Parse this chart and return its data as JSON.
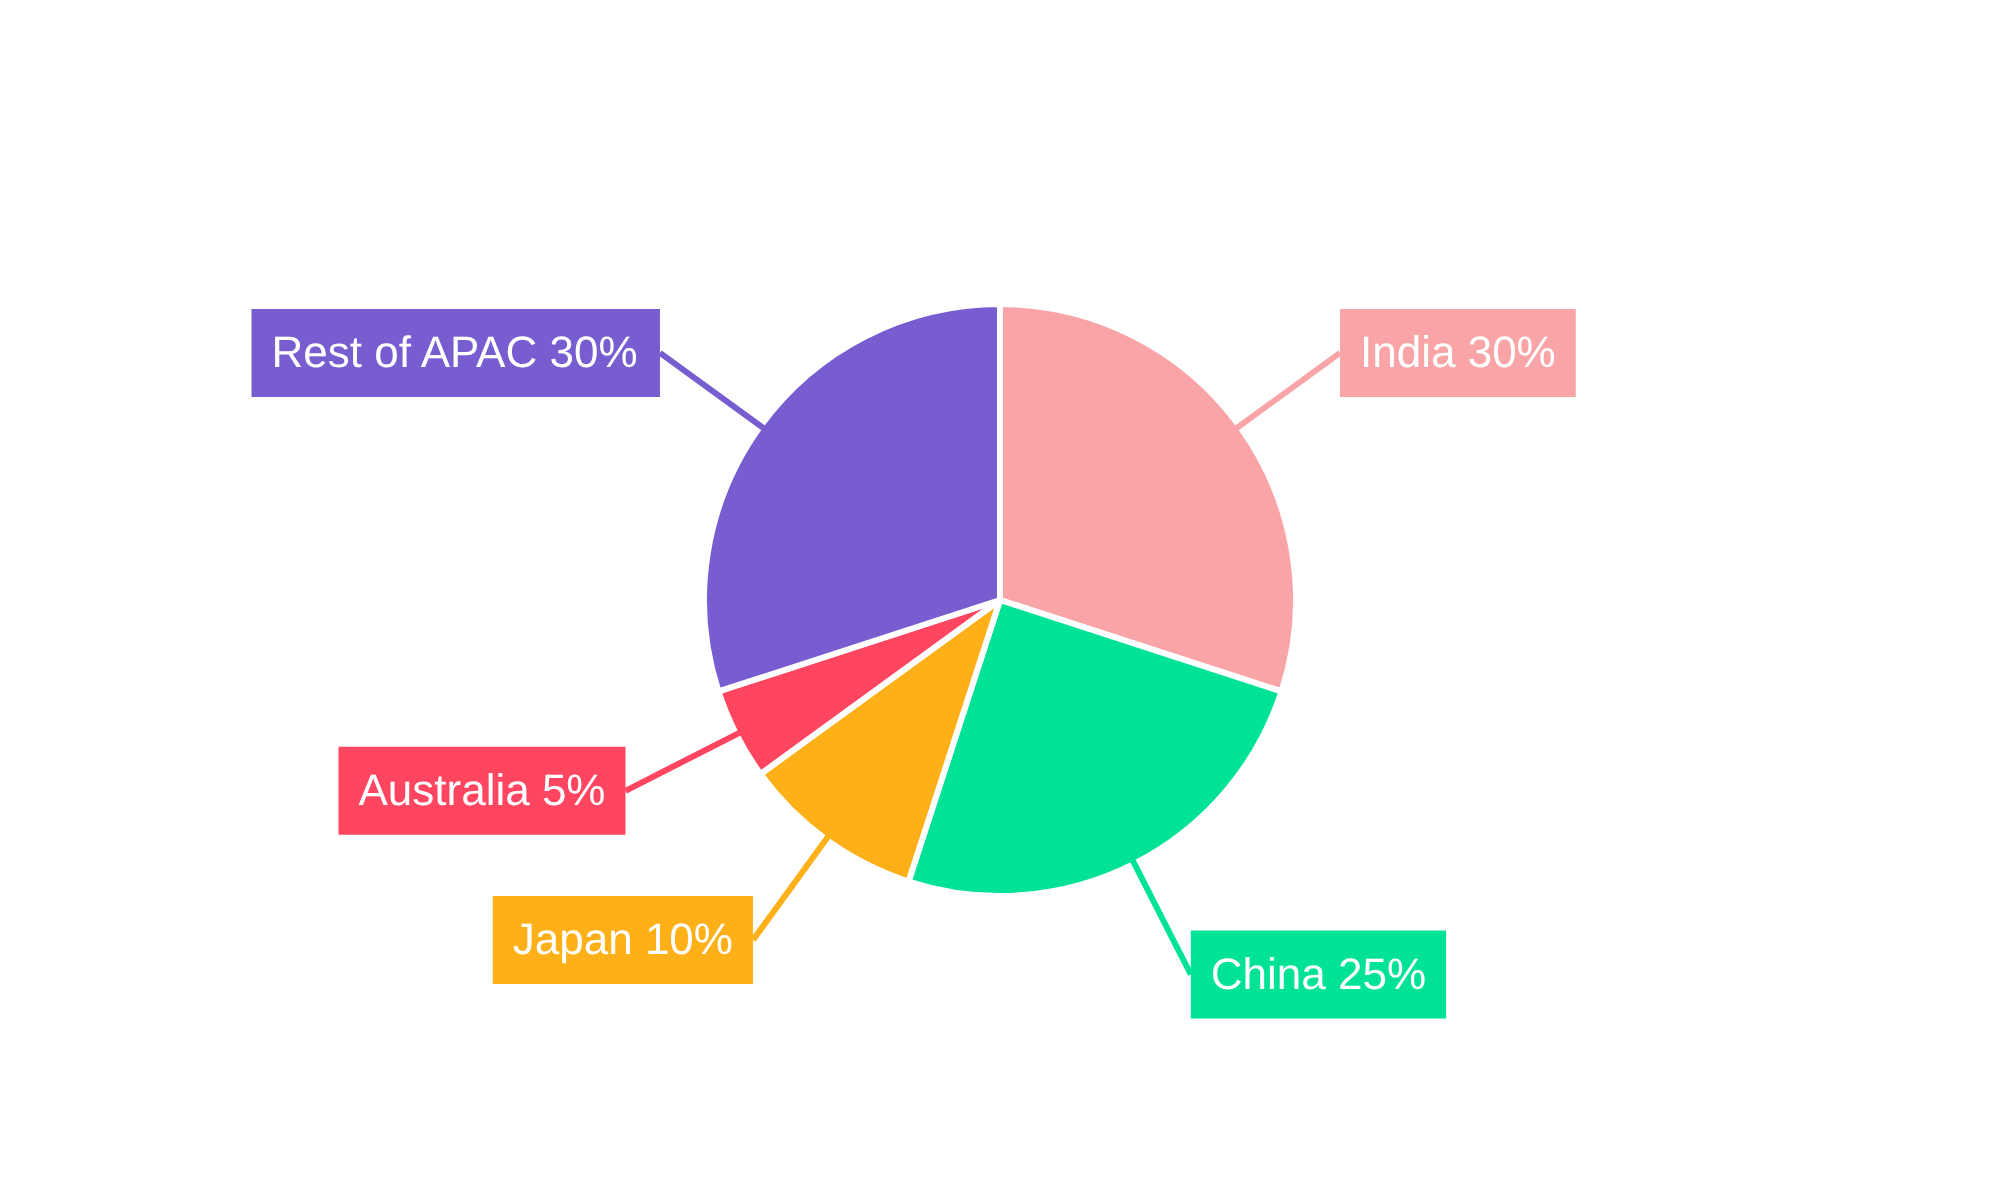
{
  "chart_data": {
    "type": "pie",
    "categories": [
      "India",
      "China",
      "Japan",
      "Australia",
      "Rest of APAC"
    ],
    "values": [
      30,
      25,
      10,
      5,
      30
    ],
    "value_labels": [
      "30%",
      "25%",
      "10%",
      "5%",
      "30%"
    ],
    "colors": [
      "#f9a5a7",
      "#00e396",
      "#feb019",
      "#ff4560",
      "#775dd0"
    ]
  }
}
